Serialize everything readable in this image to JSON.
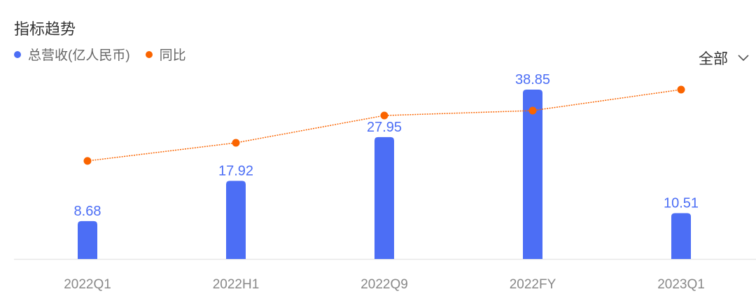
{
  "header": {
    "title": "指标趋势",
    "filter_label": "全部",
    "filter_icon": "chevron-down-icon"
  },
  "colors": {
    "revenue": "#4c6ef5",
    "yoy": "#fa6400"
  },
  "chart_data": {
    "type": "bar+line",
    "categories": [
      "2022Q1",
      "2022H1",
      "2022Q9",
      "2022FY",
      "2023Q1"
    ],
    "series": [
      {
        "name": "总营收(亿人民币)",
        "type": "bar",
        "values": [
          8.68,
          17.92,
          27.95,
          38.85,
          10.51
        ],
        "labels": [
          "8.68",
          "17.92",
          "27.95",
          "38.85",
          "10.51"
        ]
      },
      {
        "name": "同比",
        "type": "line",
        "values": [
          57.9,
          68.6,
          84.7,
          87.6,
          100
        ],
        "note_axis": "hidden"
      }
    ],
    "legend": "top-left",
    "grid": false,
    "ylim": [
      0,
      38.85
    ]
  }
}
